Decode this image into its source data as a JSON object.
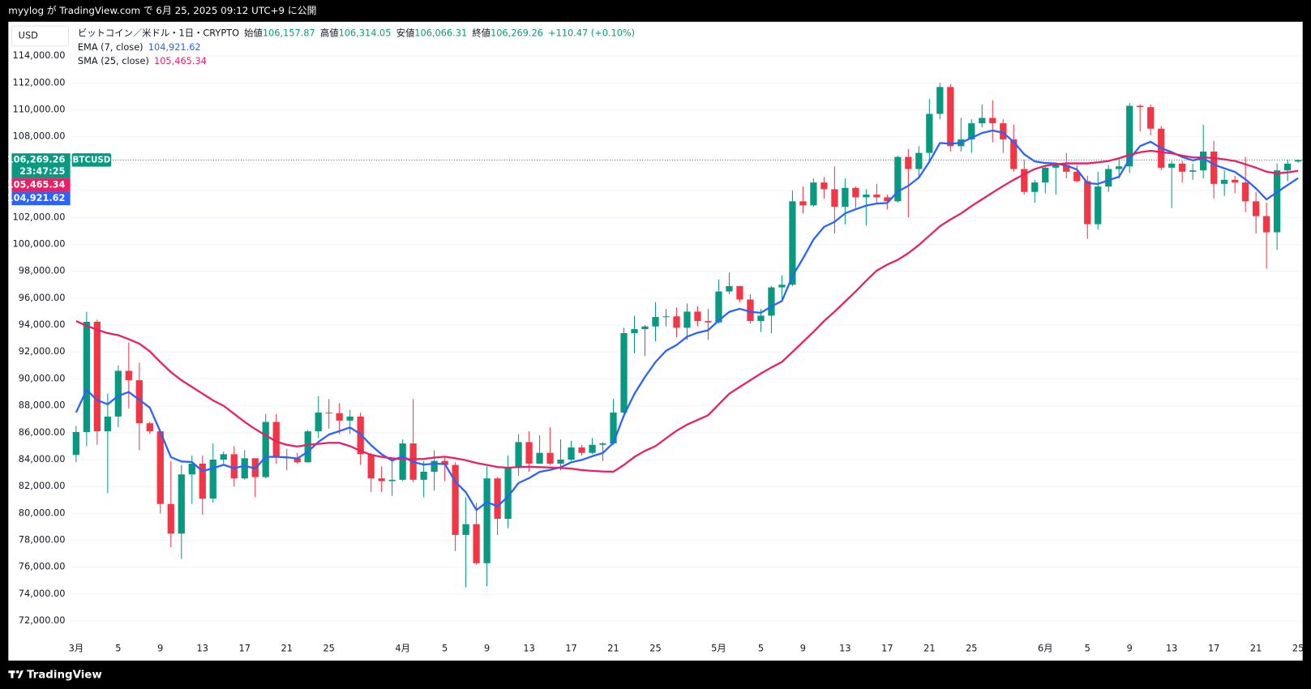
{
  "header": {
    "publish": "myylog が TradingView.com で 6月 25, 2025 09:12 UTC+9 に公開"
  },
  "chart_data": {
    "type": "candlestick",
    "currency": "USD",
    "symbol_tag": "BTCUSD",
    "countdown": "23:47:25",
    "legend": {
      "symbol": "ビットコイン／米ドル・1日・CRYPTO",
      "items": [
        {
          "label": "始値",
          "value": "106,157.87"
        },
        {
          "label": "高値",
          "value": "106,314.05"
        },
        {
          "label": "安値",
          "value": "106,066.31"
        },
        {
          "label": "終値",
          "value": "106,269.26"
        }
      ],
      "change": "+110.47 (+0.10%)"
    },
    "up_color": "#089981",
    "down_color": "#f23645",
    "categories": [
      "3月",
      null,
      null,
      null,
      "5",
      null,
      null,
      null,
      "9",
      null,
      null,
      null,
      "13",
      null,
      null,
      null,
      "17",
      null,
      null,
      null,
      "21",
      null,
      null,
      null,
      "25",
      null,
      null,
      null,
      null,
      null,
      null,
      "4月",
      null,
      null,
      null,
      "5",
      null,
      null,
      null,
      "9",
      null,
      null,
      null,
      "13",
      null,
      null,
      null,
      "17",
      null,
      null,
      null,
      "21",
      null,
      null,
      null,
      "25",
      null,
      null,
      null,
      null,
      null,
      "5月",
      null,
      null,
      null,
      "5",
      null,
      null,
      null,
      "9",
      null,
      null,
      null,
      "13",
      null,
      null,
      null,
      "17",
      null,
      null,
      null,
      "21",
      null,
      null,
      null,
      "25",
      null,
      null,
      null,
      null,
      null,
      null,
      "6月",
      null,
      null,
      null,
      "5",
      null,
      null,
      null,
      "9",
      null,
      null,
      null,
      "13",
      null,
      null,
      null,
      "17",
      null,
      null,
      null,
      "21",
      null,
      null,
      null,
      "25"
    ],
    "open": [
      84350,
      86050,
      94250,
      86100,
      87200,
      90600,
      89900,
      86700,
      86100,
      80700,
      78500,
      82900,
      83700,
      81100,
      84000,
      84400,
      82600,
      84100,
      82700,
      86800,
      84200,
      84100,
      83800,
      86100,
      87500,
      87450,
      86900,
      87200,
      84400,
      82600,
      82400,
      82500,
      85200,
      82500,
      83100,
      83900,
      83600,
      78400,
      79200,
      76300,
      82600,
      79600,
      83400,
      85300,
      83700,
      84500,
      83700,
      84000,
      84900,
      84500,
      85100,
      85200,
      87500,
      93400,
      93700,
      93900,
      94600,
      94650,
      93800,
      95000,
      94300,
      94200,
      96500,
      96900,
      95900,
      94300,
      94700,
      96800,
      97000,
      103200,
      102900,
      104600,
      104100,
      102800,
      104200,
      103500,
      103700,
      103500,
      103200,
      106500,
      105600,
      106800,
      109700,
      111700,
      107300,
      107800,
      109000,
      109400,
      109000,
      107800,
      105600,
      103900,
      104600,
      105700,
      105900,
      105400,
      104700,
      101500,
      104300,
      105600,
      105800,
      110300,
      110200,
      108600,
      105700,
      106000,
      105400,
      105500,
      106900,
      104500,
      104800,
      104600,
      103200,
      102100,
      100900,
      105500,
      106157.87
    ],
    "high": [
      86500,
      95000,
      94400,
      88900,
      91000,
      92700,
      91200,
      86800,
      86200,
      83900,
      83600,
      84300,
      84300,
      85200,
      84600,
      85000,
      84700,
      84100,
      87400,
      87400,
      84800,
      84500,
      86200,
      88700,
      88500,
      88200,
      87700,
      87500,
      84500,
      83500,
      83900,
      85500,
      88500,
      83900,
      84700,
      84200,
      83800,
      81200,
      80800,
      83500,
      82700,
      84300,
      85900,
      86100,
      85800,
      86400,
      85500,
      85400,
      85100,
      85600,
      85300,
      88500,
      93800,
      94700,
      94000,
      95700,
      95200,
      95300,
      95600,
      95400,
      95200,
      97400,
      97900,
      96900,
      96300,
      95200,
      96900,
      97700,
      104000,
      104300,
      104900,
      105000,
      105800,
      104900,
      104300,
      104100,
      104500,
      103700,
      106600,
      107100,
      107300,
      110800,
      112000,
      111900,
      109400,
      109300,
      110400,
      110700,
      109300,
      108900,
      106300,
      104800,
      105900,
      105900,
      106800,
      105900,
      105100,
      105400,
      105900,
      106400,
      110500,
      110400,
      110400,
      108800,
      106200,
      106200,
      106000,
      108900,
      107700,
      105500,
      105100,
      106500,
      103900,
      103100,
      106000,
      106300,
      106314.05
    ],
    "low": [
      83800,
      85000,
      85100,
      81500,
      86400,
      87800,
      84700,
      85900,
      80000,
      77500,
      76600,
      80700,
      79900,
      80800,
      83700,
      82000,
      82500,
      81200,
      82600,
      83700,
      83200,
      83700,
      83800,
      85600,
      86300,
      85900,
      85900,
      83600,
      81600,
      81600,
      81300,
      82400,
      82300,
      81200,
      81700,
      82400,
      77200,
      74500,
      76200,
      74600,
      78400,
      78900,
      82800,
      83100,
      83700,
      83600,
      83200,
      83900,
      84300,
      84400,
      83900,
      85100,
      87100,
      91900,
      91700,
      92800,
      93900,
      93100,
      92900,
      93900,
      92900,
      94100,
      96300,
      95700,
      94100,
      93500,
      93400,
      95800,
      96900,
      102300,
      102800,
      103400,
      100800,
      101500,
      102700,
      101400,
      103100,
      102600,
      103100,
      102000,
      104900,
      106100,
      109300,
      106900,
      106900,
      106800,
      108700,
      107600,
      106800,
      105400,
      103700,
      103100,
      103800,
      103700,
      104900,
      104600,
      100400,
      101100,
      103900,
      104900,
      105300,
      108400,
      108100,
      105500,
      102700,
      104600,
      104800,
      104900,
      103400,
      103600,
      103800,
      102400,
      100800,
      98200,
      99600,
      104700,
      106066.31
    ],
    "close": [
      86050,
      94250,
      86100,
      87200,
      90600,
      89900,
      86700,
      86100,
      80700,
      78500,
      82900,
      83700,
      81100,
      84000,
      84400,
      82600,
      84100,
      82700,
      86800,
      84200,
      84100,
      83800,
      86100,
      87500,
      87450,
      86900,
      87200,
      84400,
      82600,
      82400,
      82500,
      85200,
      82500,
      83100,
      83900,
      83600,
      78400,
      79200,
      76300,
      82600,
      79600,
      83400,
      85300,
      83700,
      84500,
      83700,
      84000,
      84900,
      84500,
      85100,
      85200,
      87500,
      93400,
      93700,
      93900,
      94600,
      94650,
      93800,
      95000,
      94300,
      94200,
      96500,
      96900,
      95900,
      94300,
      94700,
      96800,
      97000,
      103200,
      102900,
      104600,
      104100,
      102800,
      104200,
      103500,
      103700,
      103500,
      103200,
      106500,
      105600,
      106800,
      109700,
      111700,
      107300,
      107800,
      109000,
      109400,
      109000,
      107800,
      105600,
      103900,
      104600,
      105700,
      105900,
      105400,
      104700,
      101500,
      104300,
      105600,
      105800,
      110300,
      110200,
      108600,
      105700,
      106000,
      105400,
      105500,
      106900,
      104500,
      104800,
      104600,
      103200,
      102100,
      100900,
      105500,
      106000,
      106269.26
    ],
    "overlays": [
      {
        "name": "EMA (7, close)",
        "color": "#2962ff",
        "value_label": "104,921.62",
        "values": [
          87500,
          89190,
          88420,
          88115,
          88735,
          89025,
          88445,
          87860,
          86070,
          84180,
          83860,
          83820,
          83140,
          83355,
          83615,
          83360,
          83545,
          83335,
          84200,
          84200,
          84175,
          84080,
          84585,
          85315,
          85860,
          86120,
          86390,
          85890,
          85070,
          84400,
          83925,
          84245,
          83810,
          83630,
          83700,
          83675,
          82355,
          81570,
          80250,
          80840,
          80530,
          81250,
          82260,
          82620,
          83090,
          83240,
          83430,
          83800,
          83975,
          84255,
          84490,
          85245,
          87285,
          88890,
          90140,
          91255,
          92090,
          92520,
          93140,
          93430,
          93620,
          94340,
          94980,
          95210,
          94985,
          94915,
          95385,
          95790,
          97640,
          98955,
          100365,
          101300,
          101675,
          102305,
          102605,
          102880,
          103035,
          103075,
          103930,
          104350,
          104960,
          106145,
          107535,
          107475,
          107555,
          107915,
          108285,
          108465,
          108300,
          107625,
          106695,
          106170,
          106050,
          106015,
          105860,
          105570,
          104555,
          104490,
          104770,
          105025,
          106345,
          107310,
          107630,
          107150,
          106860,
          106495,
          106245,
          106410,
          105930,
          105650,
          105385,
          104840,
          104155,
          103340,
          103880,
          104410,
          104921.62
        ]
      },
      {
        "name": "SMA (25, close)",
        "color": "#e91e63",
        "value_label": "105,465.34",
        "values": [
          94300,
          93950,
          93650,
          93400,
          93250,
          92950,
          92620,
          92050,
          91250,
          90500,
          89900,
          89400,
          88900,
          88400,
          88000,
          87400,
          86800,
          86270,
          85800,
          85340,
          85100,
          84970,
          85100,
          85170,
          85250,
          85250,
          85000,
          84650,
          84350,
          84200,
          84100,
          84030,
          84030,
          84050,
          84150,
          84220,
          84100,
          83950,
          83750,
          83600,
          83450,
          83400,
          83450,
          83470,
          83440,
          83410,
          83380,
          83330,
          83220,
          83160,
          83120,
          83100,
          83600,
          84200,
          84650,
          85000,
          85580,
          86150,
          86600,
          86950,
          87300,
          88100,
          88900,
          89400,
          89900,
          90400,
          90850,
          91260,
          92000,
          92750,
          93500,
          94300,
          95000,
          95750,
          96500,
          97300,
          98050,
          98500,
          98850,
          99350,
          99950,
          100650,
          101350,
          101850,
          102300,
          102850,
          103350,
          103850,
          104340,
          104800,
          105210,
          105600,
          105840,
          105950,
          106020,
          106020,
          106020,
          106100,
          106200,
          106400,
          106650,
          106850,
          106960,
          106850,
          106770,
          106600,
          106460,
          106460,
          106420,
          106320,
          106200,
          105950,
          105700,
          105400,
          105280,
          105350,
          105465.34
        ]
      }
    ],
    "ylim": [
      70800,
      116550
    ],
    "yticks": [
      {
        "value": 72000,
        "label": "72,000.00"
      },
      {
        "value": 74000,
        "label": "74,000.00"
      },
      {
        "value": 76000,
        "label": "76,000.00"
      },
      {
        "value": 78000,
        "label": "78,000.00"
      },
      {
        "value": 80000,
        "label": "80,000.00"
      },
      {
        "value": 82000,
        "label": "82,000.00"
      },
      {
        "value": 84000,
        "label": "84,000.00"
      },
      {
        "value": 86000,
        "label": "86,000.00"
      },
      {
        "value": 88000,
        "label": "88,000.00"
      },
      {
        "value": 90000,
        "label": "90,000.00"
      },
      {
        "value": 92000,
        "label": "92,000.00"
      },
      {
        "value": 94000,
        "label": "94,000.00"
      },
      {
        "value": 96000,
        "label": "96,000.00"
      },
      {
        "value": 98000,
        "label": "98,000.00"
      },
      {
        "value": 100000,
        "label": "100,000.00"
      },
      {
        "value": 102000,
        "label": "102,000.00"
      },
      {
        "value": 104000,
        "label": "104,000.00"
      },
      {
        "value": 106000,
        "label": "106,000.00"
      },
      {
        "value": 108000,
        "label": "108,000.00"
      },
      {
        "value": 110000,
        "label": "110,000.00"
      },
      {
        "value": 112000,
        "label": "112,000.00"
      },
      {
        "value": 114000,
        "label": "114,000.00"
      }
    ],
    "grid": true
  },
  "footer": {
    "brand": "TradingView"
  }
}
